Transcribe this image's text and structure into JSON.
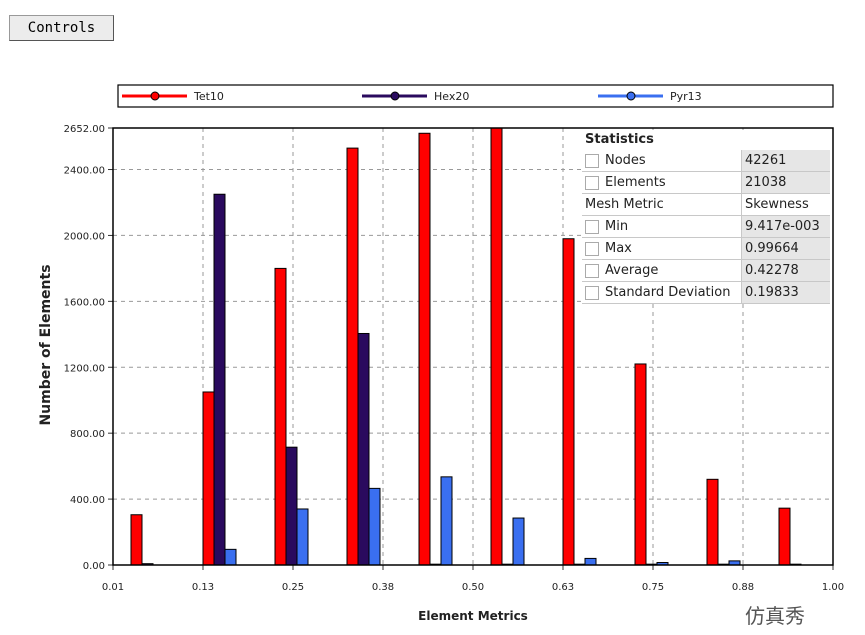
{
  "controls_label": "Controls",
  "watermark": "仿真秀",
  "chart_data": {
    "type": "bar",
    "xlabel": "Element Metrics",
    "ylabel": "Number of Elements",
    "xlim": [
      0.01,
      1.0
    ],
    "ylim": [
      0,
      2652
    ],
    "grid": true,
    "legend_position": "top",
    "x_ticks": [
      "0.01",
      "0.13",
      "0.25",
      "0.38",
      "0.50",
      "0.63",
      "0.75",
      "0.88",
      "1.00"
    ],
    "y_ticks": [
      0,
      400,
      800,
      1200,
      1600,
      2000,
      2400,
      2652
    ],
    "y_tick_labels": [
      "0.00",
      "400.00",
      "800.00",
      "1200.00",
      "1600.00",
      "2000.00",
      "2400.00",
      "2652.00"
    ],
    "bins": 10,
    "series": [
      {
        "name": "Tet10",
        "color": "#ff0000",
        "values": [
          305,
          1050,
          1800,
          2530,
          2620,
          2652,
          1980,
          1220,
          520,
          345
        ]
      },
      {
        "name": "Hex20",
        "color": "#2a0a5e",
        "values": [
          8,
          2250,
          715,
          1405,
          5,
          5,
          5,
          5,
          5,
          5
        ]
      },
      {
        "name": "Pyr13",
        "color": "#3a6ff0",
        "values": [
          0,
          95,
          340,
          465,
          535,
          285,
          40,
          15,
          25,
          0
        ]
      }
    ]
  },
  "statistics": {
    "title": "Statistics",
    "rows": [
      {
        "label": "Nodes",
        "value": "42261",
        "checkbox": true
      },
      {
        "label": "Elements",
        "value": "21038",
        "checkbox": true
      },
      {
        "label": "Mesh Metric",
        "value": "Skewness",
        "checkbox": false
      },
      {
        "label": "Min",
        "value": "9.417e-003",
        "checkbox": true
      },
      {
        "label": "Max",
        "value": "0.99664",
        "checkbox": true
      },
      {
        "label": "Average",
        "value": "0.42278",
        "checkbox": true
      },
      {
        "label": "Standard Deviation",
        "value": "0.19833",
        "checkbox": true
      }
    ]
  }
}
